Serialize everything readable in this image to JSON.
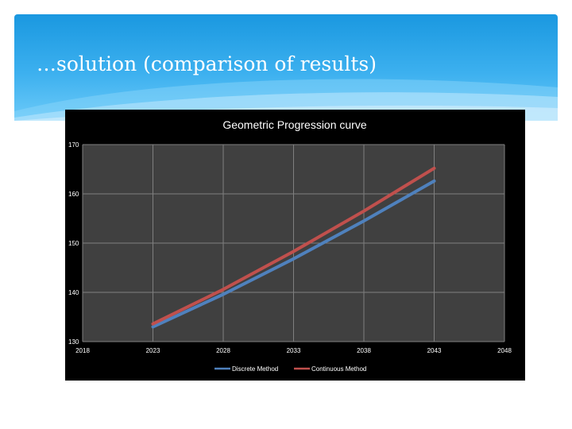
{
  "slide": {
    "title": "…solution (comparison of results)"
  },
  "colors": {
    "header_blue": "#1a98e0",
    "chart_background": "#000000",
    "plot_area": "#404040",
    "gridline": "#7f7f7f",
    "discrete_series": "#4f81bd",
    "continuous_series": "#c0504d"
  },
  "chart_data": {
    "type": "line",
    "title": "Geometric Progression curve",
    "xlabel": "",
    "ylabel": "",
    "xlim": [
      2018,
      2048
    ],
    "ylim": [
      130,
      170
    ],
    "x_ticks": [
      "2018",
      "2023",
      "2028",
      "2033",
      "2038",
      "2043",
      "2048"
    ],
    "y_ticks": [
      "130",
      "140",
      "150",
      "160",
      "170"
    ],
    "grid": true,
    "legend_position": "bottom",
    "series": [
      {
        "name": "Discrete Method",
        "color": "#4f81bd",
        "x": [
          2023,
          2028,
          2033,
          2038,
          2043
        ],
        "y": [
          133.0,
          139.6,
          146.8,
          154.5,
          162.6
        ]
      },
      {
        "name": "Continuous Method",
        "color": "#c0504d",
        "x": [
          2023,
          2028,
          2033,
          2038,
          2043
        ],
        "y": [
          133.6,
          140.6,
          148.3,
          156.5,
          165.2
        ]
      }
    ]
  }
}
